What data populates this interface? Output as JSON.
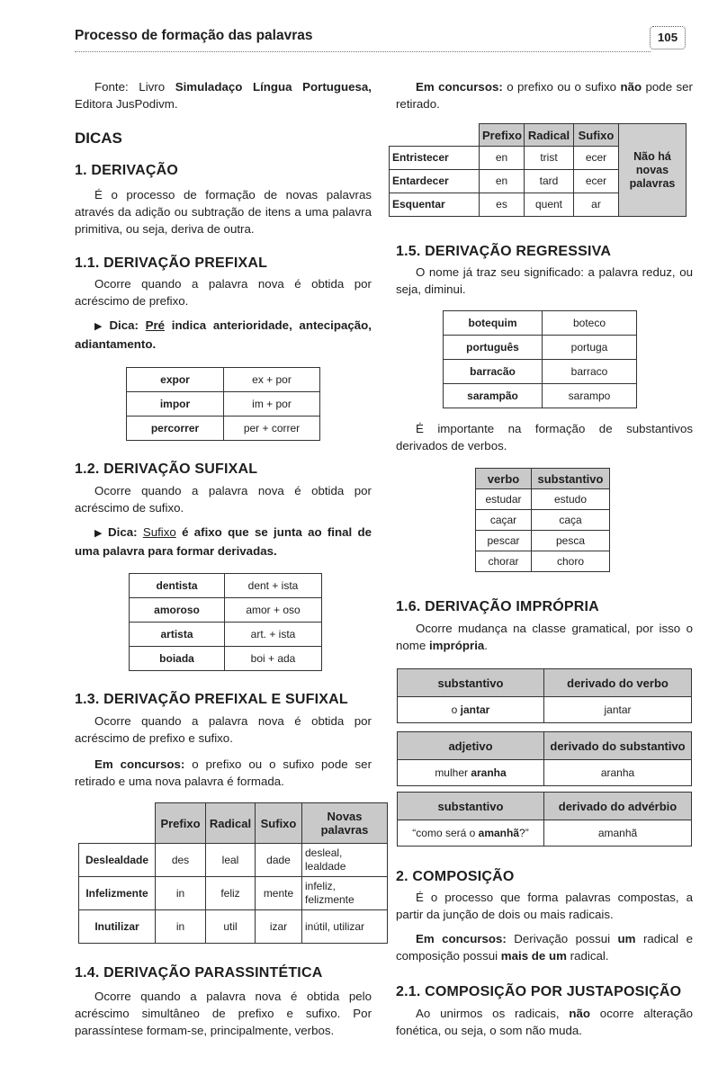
{
  "header": {
    "title": "Processo de formação das palavras",
    "page": "105"
  },
  "left": {
    "source": [
      "Fonte: Livro ",
      "Simuladaço Língua Portuguesa,",
      " Editora JusPodivm."
    ],
    "tips_heading": "DICAS",
    "derivacao": {
      "heading": "1. DERIVAÇÃO",
      "text": "É o processo de formação de novas palavras através da adição ou subtração de itens a uma palavra primitiva, ou seja, deriva de outra."
    },
    "prefixal": {
      "heading": "1.1. DERIVAÇÃO PREFIXAL",
      "text": "Ocorre quando a palavra nova é obtida por acréscimo de prefixo.",
      "tip": [
        "Dica:",
        "Pré",
        " indica anterioridade, antecipação, adiantamento."
      ],
      "table": [
        [
          "expor",
          "ex + por"
        ],
        [
          "impor",
          "im + por"
        ],
        [
          "percorrer",
          "per + correr"
        ]
      ]
    },
    "sufixal": {
      "heading": "1.2. DERIVAÇÃO SUFIXAL",
      "text": "Ocorre quando a palavra nova é obtida por acréscimo de sufixo.",
      "tip": [
        "Dica:",
        "Sufixo",
        " é afixo que se junta ao final de uma palavra para formar derivadas."
      ],
      "table": [
        [
          "dentista",
          "dent + ista"
        ],
        [
          "amoroso",
          "amor + oso"
        ],
        [
          "artista",
          "art. + ista"
        ],
        [
          "boiada",
          "boi + ada"
        ]
      ]
    },
    "prefixal_sufixal": {
      "heading": "1.3. DERIVAÇÃO PREFIXAL E SUFIXAL",
      "text": "Ocorre quando a palavra nova é obtida por acréscimo de prefixo e sufixo.",
      "note": [
        "Em concursos:",
        " o prefixo ou o sufixo pode ser retirado e uma nova palavra é formada."
      ],
      "table": {
        "header": [
          null,
          "Prefixo",
          "Radical",
          "Sufixo",
          "Novas palavras"
        ],
        "rows": [
          [
            "Deslealdade",
            "des",
            "leal",
            "dade",
            "desleal, lealdade"
          ],
          [
            "Infelizmente",
            "in",
            "feliz",
            "mente",
            "infeliz, felizmente"
          ],
          [
            "Inutilizar",
            "in",
            "util",
            "izar",
            "inútil, utilizar"
          ]
        ]
      }
    },
    "parassintetica": {
      "heading": "1.4. DERIVAÇÃO PARASSINTÉTICA",
      "text": "Ocorre quando a palavra nova é obtida pelo acréscimo simultâneo de prefixo e sufixo. Por parassíntese formam-se, principalmente, verbos."
    }
  },
  "right": {
    "note": [
      "Em concursos:",
      " o prefixo ou o sufixo ",
      "não",
      " pode ser retirado."
    ],
    "table": {
      "header": [
        null,
        "Prefixo",
        "Radical",
        "Sufixo"
      ],
      "side": "Não há novas palavras",
      "rows": [
        [
          "Entristecer",
          "en",
          "trist",
          "ecer"
        ],
        [
          "Entardecer",
          "en",
          "tard",
          "ecer"
        ],
        [
          "Esquentar",
          "es",
          "quent",
          "ar"
        ]
      ]
    },
    "regressiva": {
      "heading": "1.5. DERIVAÇÃO REGRESSIVA",
      "text": "O nome já traz seu significado: a palavra reduz, ou seja, diminui.",
      "table": [
        [
          "botequim",
          "boteco"
        ],
        [
          "português",
          "portuga"
        ],
        [
          "barracão",
          "barraco"
        ],
        [
          "sarampão",
          "sarampo"
        ]
      ],
      "text2": "É importante na formação de substantivos derivados de verbos.",
      "table2": {
        "header": [
          "verbo",
          "substantivo"
        ],
        "rows": [
          [
            "estudar",
            "estudo"
          ],
          [
            "caçar",
            "caça"
          ],
          [
            "pescar",
            "pesca"
          ],
          [
            "chorar",
            "choro"
          ]
        ]
      }
    },
    "impropria": {
      "heading": "1.6. DERIVAÇÃO IMPRÓPRIA",
      "text": [
        "Ocorre mudança na classe gramatical, por isso o nome ",
        "imprópria",
        "."
      ],
      "tables": [
        {
          "header": [
            "substantivo",
            "derivado do verbo"
          ],
          "rows": [
            [
              [
                "o ",
                "jantar"
              ],
              "jantar"
            ]
          ]
        },
        {
          "header": [
            "adjetivo",
            "derivado do substantivo"
          ],
          "rows": [
            [
              [
                "mulher ",
                "aranha"
              ],
              "aranha"
            ]
          ]
        },
        {
          "header": [
            "substantivo",
            "derivado do advérbio"
          ],
          "rows": [
            [
              [
                "“como será o ",
                "amanhã",
                "?”"
              ],
              "amanhã"
            ]
          ]
        }
      ]
    },
    "composicao": {
      "heading": "2. COMPOSIÇÃO",
      "text": "É o processo que forma palavras compostas, a partir da junção de dois ou mais radicais.",
      "note": [
        "Em concursos:",
        " Derivação possui ",
        "um",
        " radical e composição possui ",
        "mais de um",
        " radical."
      ]
    },
    "justaposicao": {
      "heading": "2.1. COMPOSIÇÃO POR JUSTAPOSIÇÃO",
      "text": [
        "Ao unirmos os radicais, ",
        "não",
        " ocorre alteração fonética, ou seja, o som não muda."
      ]
    }
  }
}
